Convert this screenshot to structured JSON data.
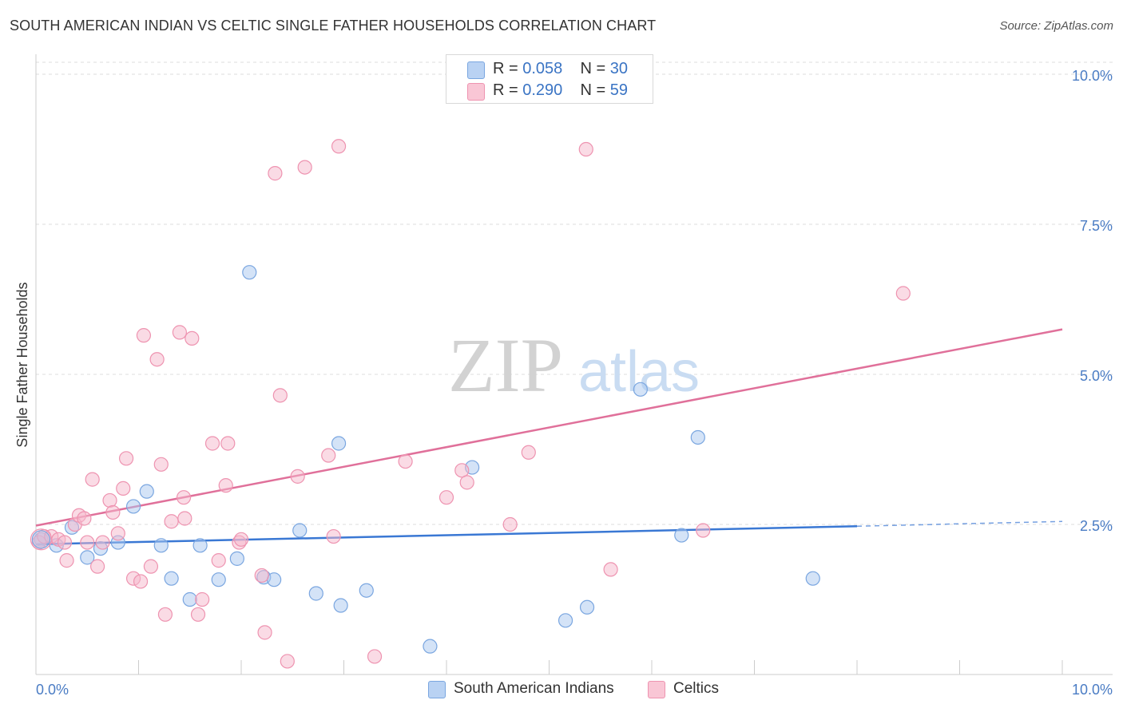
{
  "header": {
    "title": "SOUTH AMERICAN INDIAN VS CELTIC SINGLE FATHER HOUSEHOLDS CORRELATION CHART",
    "source": "Source: ZipAtlas.com"
  },
  "watermark": {
    "zip": "ZIP",
    "atlas": "atlas"
  },
  "legend": {
    "series": [
      {
        "r_label": "R =",
        "r_value": "0.058",
        "n_label": "N =",
        "n_value": "30"
      },
      {
        "r_label": "R =",
        "r_value": "0.290",
        "n_label": "N =",
        "n_value": "59"
      }
    ],
    "bottom": [
      "South American Indians",
      "Celtics"
    ]
  },
  "colors": {
    "blue_fill": "#a9c8f0",
    "blue_stroke": "#7aa6e0",
    "blue_line": "#3a78d4",
    "pink_fill": "#f6b8cb",
    "pink_stroke": "#ee93b0",
    "pink_line": "#e0709a",
    "axis_text": "#4a7cc4",
    "grid": "#dddddd"
  },
  "chart_data": {
    "type": "scatter",
    "title": "SOUTH AMERICAN INDIAN VS CELTIC SINGLE FATHER HOUSEHOLDS CORRELATION CHART",
    "xlabel": "",
    "ylabel": "Single Father Households",
    "xlim": [
      0,
      10
    ],
    "ylim": [
      0,
      10.2
    ],
    "x_tick_labels": [
      "0.0%",
      "10.0%"
    ],
    "y_ticks": [
      2.5,
      5.0,
      7.5,
      10.0
    ],
    "y_tick_labels": [
      "2.5%",
      "5.0%",
      "7.5%",
      "10.0%"
    ],
    "series": [
      {
        "name": "South American Indians",
        "color": "blue",
        "r": 0.058,
        "n": 30,
        "trend": {
          "x0": 0,
          "y0": 2.17,
          "x1": 8.0,
          "y1": 2.47,
          "dash_to_x": 10.0,
          "dash_to_y": 2.55
        },
        "points": [
          [
            0.05,
            2.25
          ],
          [
            0.2,
            2.15
          ],
          [
            0.35,
            2.45
          ],
          [
            0.5,
            1.95
          ],
          [
            0.63,
            2.1
          ],
          [
            0.8,
            2.2
          ],
          [
            0.95,
            2.8
          ],
          [
            1.08,
            3.05
          ],
          [
            1.22,
            2.15
          ],
          [
            1.32,
            1.6
          ],
          [
            1.5,
            1.25
          ],
          [
            1.6,
            2.15
          ],
          [
            1.78,
            1.58
          ],
          [
            1.96,
            1.93
          ],
          [
            2.08,
            6.7
          ],
          [
            2.22,
            1.62
          ],
          [
            2.32,
            1.58
          ],
          [
            2.57,
            2.4
          ],
          [
            2.73,
            1.35
          ],
          [
            2.95,
            3.85
          ],
          [
            2.97,
            1.15
          ],
          [
            3.22,
            1.4
          ],
          [
            3.84,
            0.47
          ],
          [
            4.25,
            3.45
          ],
          [
            5.16,
            0.9
          ],
          [
            5.37,
            1.12
          ],
          [
            5.89,
            4.75
          ],
          [
            6.29,
            2.32
          ],
          [
            6.45,
            3.95
          ],
          [
            7.57,
            1.6
          ]
        ]
      },
      {
        "name": "Celtics",
        "color": "pink",
        "r": 0.29,
        "n": 59,
        "trend": {
          "x0": 0,
          "y0": 2.48,
          "x1": 10.0,
          "y1": 5.75
        },
        "points": [
          [
            0.03,
            2.2
          ],
          [
            0.08,
            2.3
          ],
          [
            0.15,
            2.3
          ],
          [
            0.22,
            2.25
          ],
          [
            0.28,
            2.2
          ],
          [
            0.3,
            1.9
          ],
          [
            0.38,
            2.5
          ],
          [
            0.42,
            2.65
          ],
          [
            0.47,
            2.6
          ],
          [
            0.5,
            2.2
          ],
          [
            0.55,
            3.25
          ],
          [
            0.6,
            1.8
          ],
          [
            0.65,
            2.2
          ],
          [
            0.72,
            2.9
          ],
          [
            0.75,
            2.7
          ],
          [
            0.8,
            2.35
          ],
          [
            0.85,
            3.1
          ],
          [
            0.88,
            3.6
          ],
          [
            0.95,
            1.6
          ],
          [
            1.02,
            1.55
          ],
          [
            1.05,
            5.65
          ],
          [
            1.12,
            1.8
          ],
          [
            1.18,
            5.25
          ],
          [
            1.22,
            3.5
          ],
          [
            1.26,
            1.0
          ],
          [
            1.32,
            2.55
          ],
          [
            1.4,
            5.7
          ],
          [
            1.44,
            2.95
          ],
          [
            1.45,
            2.6
          ],
          [
            1.52,
            5.6
          ],
          [
            1.58,
            1.0
          ],
          [
            1.62,
            1.25
          ],
          [
            1.72,
            3.85
          ],
          [
            1.78,
            1.9
          ],
          [
            1.85,
            3.15
          ],
          [
            1.87,
            3.85
          ],
          [
            1.98,
            2.2
          ],
          [
            2.0,
            2.25
          ],
          [
            2.2,
            1.65
          ],
          [
            2.23,
            0.7
          ],
          [
            2.33,
            8.35
          ],
          [
            2.38,
            4.65
          ],
          [
            2.45,
            0.22
          ],
          [
            2.55,
            3.3
          ],
          [
            2.62,
            8.45
          ],
          [
            2.85,
            3.65
          ],
          [
            2.9,
            2.3
          ],
          [
            2.95,
            8.8
          ],
          [
            3.3,
            0.3
          ],
          [
            3.6,
            3.55
          ],
          [
            4.0,
            2.95
          ],
          [
            4.15,
            3.4
          ],
          [
            4.2,
            3.2
          ],
          [
            4.62,
            2.5
          ],
          [
            4.8,
            3.7
          ],
          [
            5.36,
            8.75
          ],
          [
            5.6,
            1.75
          ],
          [
            6.5,
            2.4
          ],
          [
            8.45,
            6.35
          ]
        ]
      }
    ]
  }
}
